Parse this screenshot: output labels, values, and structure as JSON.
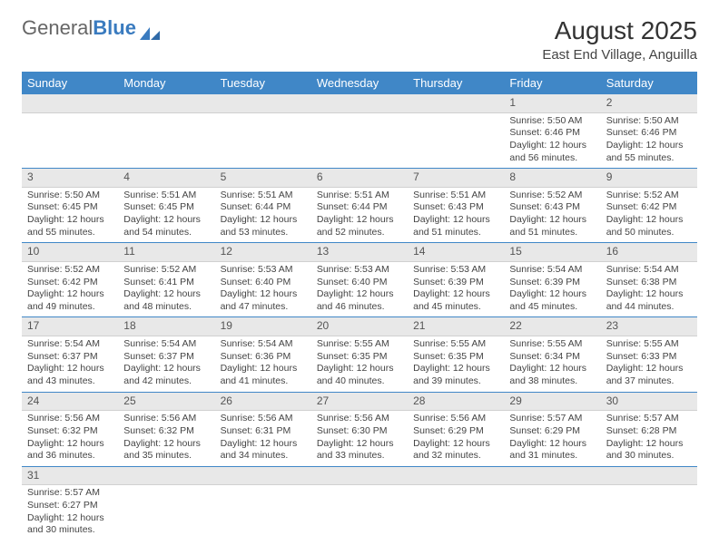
{
  "logo": {
    "first": "General",
    "second": "Blue"
  },
  "title": "August 2025",
  "subtitle": "East End Village, Anguilla",
  "colors": {
    "header_bg": "#4087c7",
    "header_text": "#ffffff",
    "daynum_bg": "#e8e8e8",
    "week_border": "#4087c7",
    "logo_accent": "#3a7bbf"
  },
  "day_headers": [
    "Sunday",
    "Monday",
    "Tuesday",
    "Wednesday",
    "Thursday",
    "Friday",
    "Saturday"
  ],
  "weeks": [
    [
      {
        "n": "",
        "sr": "",
        "ss": "",
        "dl": ""
      },
      {
        "n": "",
        "sr": "",
        "ss": "",
        "dl": ""
      },
      {
        "n": "",
        "sr": "",
        "ss": "",
        "dl": ""
      },
      {
        "n": "",
        "sr": "",
        "ss": "",
        "dl": ""
      },
      {
        "n": "",
        "sr": "",
        "ss": "",
        "dl": ""
      },
      {
        "n": "1",
        "sr": "Sunrise: 5:50 AM",
        "ss": "Sunset: 6:46 PM",
        "dl": "Daylight: 12 hours and 56 minutes."
      },
      {
        "n": "2",
        "sr": "Sunrise: 5:50 AM",
        "ss": "Sunset: 6:46 PM",
        "dl": "Daylight: 12 hours and 55 minutes."
      }
    ],
    [
      {
        "n": "3",
        "sr": "Sunrise: 5:50 AM",
        "ss": "Sunset: 6:45 PM",
        "dl": "Daylight: 12 hours and 55 minutes."
      },
      {
        "n": "4",
        "sr": "Sunrise: 5:51 AM",
        "ss": "Sunset: 6:45 PM",
        "dl": "Daylight: 12 hours and 54 minutes."
      },
      {
        "n": "5",
        "sr": "Sunrise: 5:51 AM",
        "ss": "Sunset: 6:44 PM",
        "dl": "Daylight: 12 hours and 53 minutes."
      },
      {
        "n": "6",
        "sr": "Sunrise: 5:51 AM",
        "ss": "Sunset: 6:44 PM",
        "dl": "Daylight: 12 hours and 52 minutes."
      },
      {
        "n": "7",
        "sr": "Sunrise: 5:51 AM",
        "ss": "Sunset: 6:43 PM",
        "dl": "Daylight: 12 hours and 51 minutes."
      },
      {
        "n": "8",
        "sr": "Sunrise: 5:52 AM",
        "ss": "Sunset: 6:43 PM",
        "dl": "Daylight: 12 hours and 51 minutes."
      },
      {
        "n": "9",
        "sr": "Sunrise: 5:52 AM",
        "ss": "Sunset: 6:42 PM",
        "dl": "Daylight: 12 hours and 50 minutes."
      }
    ],
    [
      {
        "n": "10",
        "sr": "Sunrise: 5:52 AM",
        "ss": "Sunset: 6:42 PM",
        "dl": "Daylight: 12 hours and 49 minutes."
      },
      {
        "n": "11",
        "sr": "Sunrise: 5:52 AM",
        "ss": "Sunset: 6:41 PM",
        "dl": "Daylight: 12 hours and 48 minutes."
      },
      {
        "n": "12",
        "sr": "Sunrise: 5:53 AM",
        "ss": "Sunset: 6:40 PM",
        "dl": "Daylight: 12 hours and 47 minutes."
      },
      {
        "n": "13",
        "sr": "Sunrise: 5:53 AM",
        "ss": "Sunset: 6:40 PM",
        "dl": "Daylight: 12 hours and 46 minutes."
      },
      {
        "n": "14",
        "sr": "Sunrise: 5:53 AM",
        "ss": "Sunset: 6:39 PM",
        "dl": "Daylight: 12 hours and 45 minutes."
      },
      {
        "n": "15",
        "sr": "Sunrise: 5:54 AM",
        "ss": "Sunset: 6:39 PM",
        "dl": "Daylight: 12 hours and 45 minutes."
      },
      {
        "n": "16",
        "sr": "Sunrise: 5:54 AM",
        "ss": "Sunset: 6:38 PM",
        "dl": "Daylight: 12 hours and 44 minutes."
      }
    ],
    [
      {
        "n": "17",
        "sr": "Sunrise: 5:54 AM",
        "ss": "Sunset: 6:37 PM",
        "dl": "Daylight: 12 hours and 43 minutes."
      },
      {
        "n": "18",
        "sr": "Sunrise: 5:54 AM",
        "ss": "Sunset: 6:37 PM",
        "dl": "Daylight: 12 hours and 42 minutes."
      },
      {
        "n": "19",
        "sr": "Sunrise: 5:54 AM",
        "ss": "Sunset: 6:36 PM",
        "dl": "Daylight: 12 hours and 41 minutes."
      },
      {
        "n": "20",
        "sr": "Sunrise: 5:55 AM",
        "ss": "Sunset: 6:35 PM",
        "dl": "Daylight: 12 hours and 40 minutes."
      },
      {
        "n": "21",
        "sr": "Sunrise: 5:55 AM",
        "ss": "Sunset: 6:35 PM",
        "dl": "Daylight: 12 hours and 39 minutes."
      },
      {
        "n": "22",
        "sr": "Sunrise: 5:55 AM",
        "ss": "Sunset: 6:34 PM",
        "dl": "Daylight: 12 hours and 38 minutes."
      },
      {
        "n": "23",
        "sr": "Sunrise: 5:55 AM",
        "ss": "Sunset: 6:33 PM",
        "dl": "Daylight: 12 hours and 37 minutes."
      }
    ],
    [
      {
        "n": "24",
        "sr": "Sunrise: 5:56 AM",
        "ss": "Sunset: 6:32 PM",
        "dl": "Daylight: 12 hours and 36 minutes."
      },
      {
        "n": "25",
        "sr": "Sunrise: 5:56 AM",
        "ss": "Sunset: 6:32 PM",
        "dl": "Daylight: 12 hours and 35 minutes."
      },
      {
        "n": "26",
        "sr": "Sunrise: 5:56 AM",
        "ss": "Sunset: 6:31 PM",
        "dl": "Daylight: 12 hours and 34 minutes."
      },
      {
        "n": "27",
        "sr": "Sunrise: 5:56 AM",
        "ss": "Sunset: 6:30 PM",
        "dl": "Daylight: 12 hours and 33 minutes."
      },
      {
        "n": "28",
        "sr": "Sunrise: 5:56 AM",
        "ss": "Sunset: 6:29 PM",
        "dl": "Daylight: 12 hours and 32 minutes."
      },
      {
        "n": "29",
        "sr": "Sunrise: 5:57 AM",
        "ss": "Sunset: 6:29 PM",
        "dl": "Daylight: 12 hours and 31 minutes."
      },
      {
        "n": "30",
        "sr": "Sunrise: 5:57 AM",
        "ss": "Sunset: 6:28 PM",
        "dl": "Daylight: 12 hours and 30 minutes."
      }
    ],
    [
      {
        "n": "31",
        "sr": "Sunrise: 5:57 AM",
        "ss": "Sunset: 6:27 PM",
        "dl": "Daylight: 12 hours and 30 minutes."
      },
      {
        "n": "",
        "sr": "",
        "ss": "",
        "dl": ""
      },
      {
        "n": "",
        "sr": "",
        "ss": "",
        "dl": ""
      },
      {
        "n": "",
        "sr": "",
        "ss": "",
        "dl": ""
      },
      {
        "n": "",
        "sr": "",
        "ss": "",
        "dl": ""
      },
      {
        "n": "",
        "sr": "",
        "ss": "",
        "dl": ""
      },
      {
        "n": "",
        "sr": "",
        "ss": "",
        "dl": ""
      }
    ]
  ]
}
